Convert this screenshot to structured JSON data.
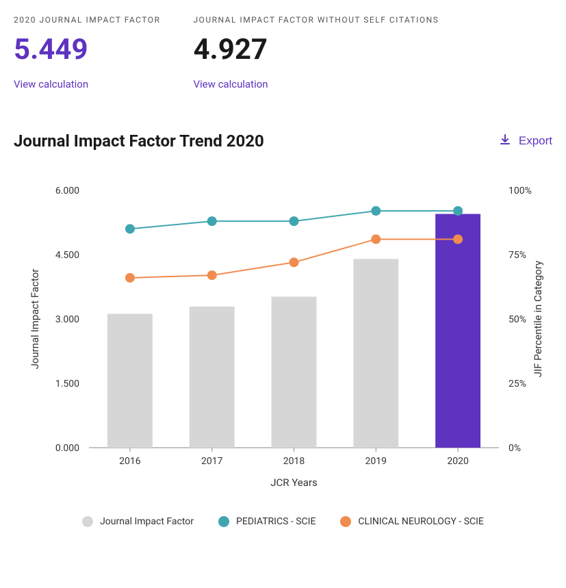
{
  "metrics": {
    "jif": {
      "label": "2020 JOURNAL IMPACT FACTOR",
      "value": "5.449",
      "link": "View calculation"
    },
    "jif_noself": {
      "label": "JOURNAL IMPACT FACTOR WITHOUT SELF CITATIONS",
      "value": "4.927",
      "link": "View calculation"
    }
  },
  "chart": {
    "title": "Journal Impact Factor Trend 2020",
    "export_label": "Export",
    "type": "bar+line-dual-axis",
    "x_label": "JCR Years",
    "y_left_label": "Journal Impact Factor",
    "y_right_label": "JIF Percentile in Category",
    "categories": [
      "2016",
      "2017",
      "2018",
      "2019",
      "2020"
    ],
    "y_left": {
      "min": 0.0,
      "max": 6.0,
      "ticks": [
        0.0,
        1.5,
        3.0,
        4.5,
        6.0
      ],
      "tick_labels": [
        "0.000",
        "1.500",
        "3.000",
        "4.500",
        "6.000"
      ]
    },
    "y_right": {
      "min": 0,
      "max": 100,
      "ticks": [
        0,
        25,
        50,
        75,
        100
      ],
      "tick_labels": [
        "0%",
        "25%",
        "50%",
        "75%",
        "100%"
      ]
    },
    "bars": {
      "name": "Journal Impact Factor",
      "values": [
        3.12,
        3.29,
        3.52,
        4.4,
        5.449
      ],
      "colors": [
        "#d6d6d6",
        "#d6d6d6",
        "#d6d6d6",
        "#d6d6d6",
        "#5e33bf"
      ],
      "width_frac": 0.55
    },
    "lines": [
      {
        "name": "PEDIATRICS - SCIE",
        "color": "#3fa5ae",
        "values": [
          85,
          88,
          88,
          92,
          92
        ]
      },
      {
        "name": "CLINICAL NEUROLOGY - SCIE",
        "color": "#f08c50",
        "values": [
          66,
          67,
          72,
          81,
          81
        ]
      }
    ],
    "axis_color": "#888888",
    "tick_fontsize": 14,
    "label_fontsize": 15,
    "marker_radius": 7,
    "line_width": 2
  },
  "colors": {
    "primary": "#5e33bf",
    "text": "#1a1a1a",
    "muted": "#555555"
  }
}
